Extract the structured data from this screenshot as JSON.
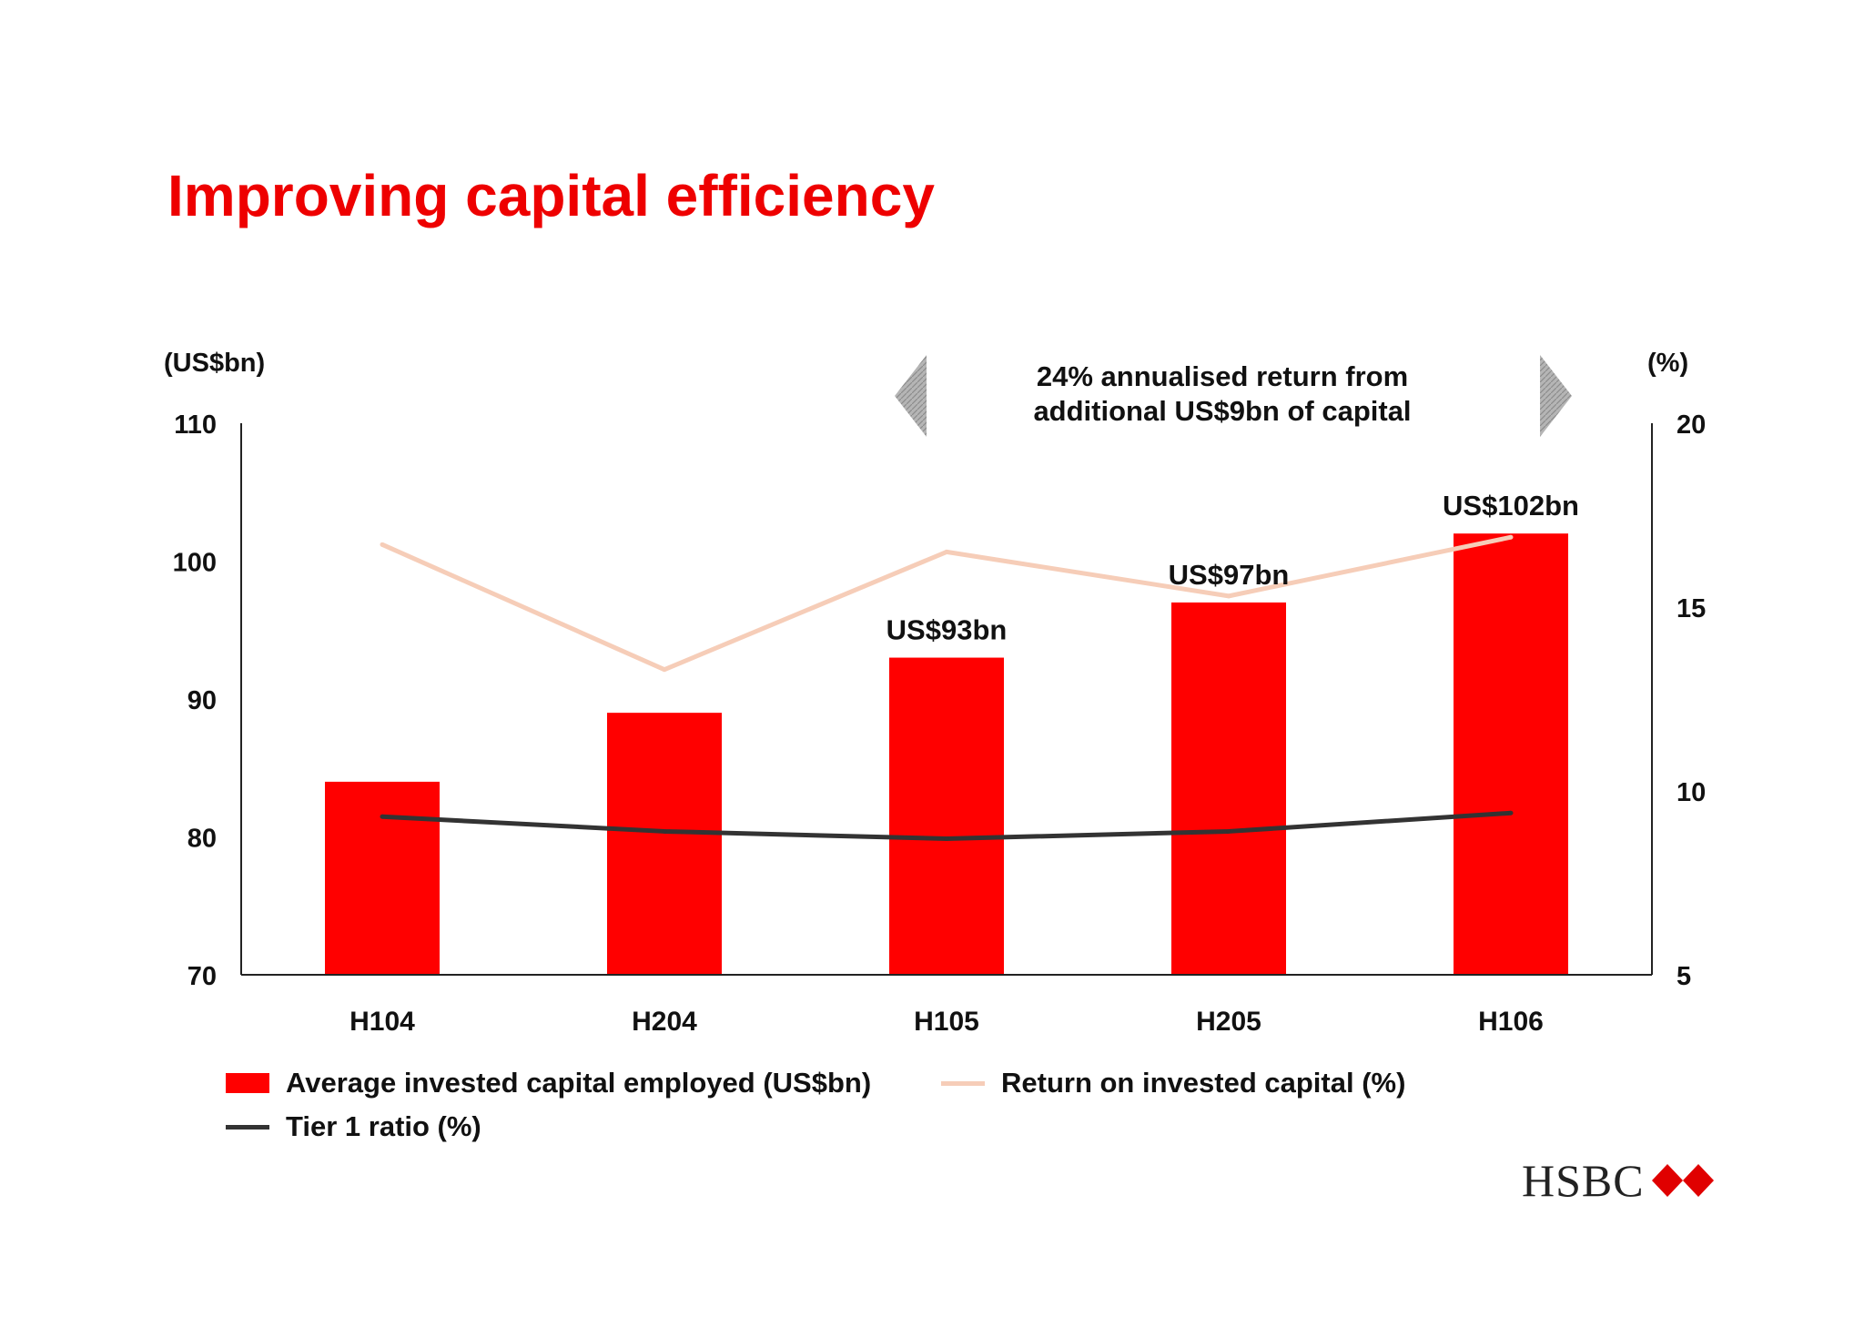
{
  "title": "Improving capital efficiency",
  "annotation": {
    "line1": "24% annualised return from",
    "line2": "additional US$9bn of capital"
  },
  "logo_text": "HSBC",
  "colors": {
    "title": "#ee0000",
    "bar": "#ff0000",
    "roic_line": "#f6cdb8",
    "tier1_line": "#333333",
    "arrow": "#a6a6a6"
  },
  "chart_data": {
    "type": "bar",
    "categories": [
      "H104",
      "H204",
      "H105",
      "H205",
      "H106"
    ],
    "left_axis": {
      "unit": "(US$bn)",
      "ylim": [
        70,
        110
      ],
      "ticks": [
        70,
        80,
        90,
        100,
        110
      ]
    },
    "right_axis": {
      "unit": "(%)",
      "ylim": [
        5,
        20
      ],
      "ticks": [
        5,
        10,
        15,
        20
      ]
    },
    "series": [
      {
        "name": "Average invested capital employed (US$bn)",
        "type": "bar",
        "axis": "left",
        "values": [
          84,
          89,
          93,
          97,
          102
        ],
        "data_labels": [
          "",
          "",
          "US$93bn",
          "US$97bn",
          "US$102bn"
        ]
      },
      {
        "name": "Return on invested capital (%)",
        "type": "line",
        "axis": "right",
        "values": [
          16.7,
          13.3,
          16.5,
          15.3,
          16.9
        ]
      },
      {
        "name": "Tier 1 ratio (%)",
        "type": "line",
        "axis": "right",
        "values": [
          9.3,
          8.9,
          8.7,
          8.9,
          9.4
        ]
      }
    ],
    "legend_position": "bottom",
    "grid": false
  }
}
